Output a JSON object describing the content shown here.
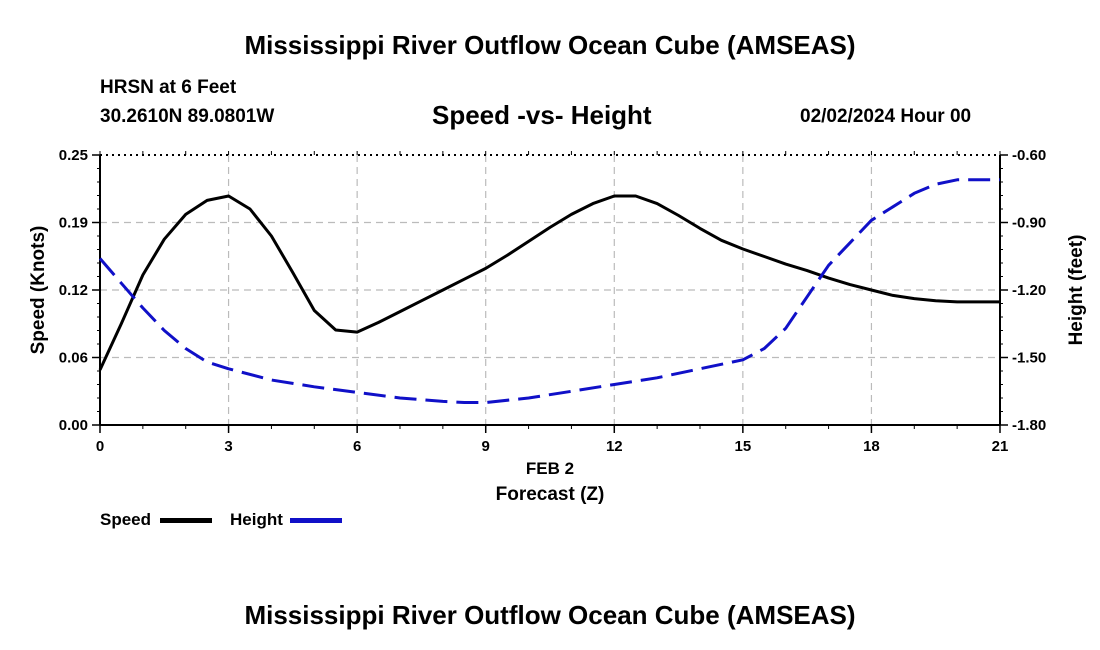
{
  "header": {
    "title": "Mississippi River Outflow Ocean Cube (AMSEAS)",
    "station": "HRSN at 6 Feet",
    "coords": "30.2610N  89.0801W",
    "subtitle": "Speed -vs- Height",
    "datetime": "02/02/2024 Hour 00"
  },
  "footer": {
    "title": "Mississippi River Outflow Ocean Cube (AMSEAS)"
  },
  "chart_data": {
    "type": "line",
    "xlabel_date": "FEB 2",
    "xlabel": "Forecast (Z)",
    "ylabel_left": "Speed (Knots)",
    "ylabel_right": "Height (feet)",
    "xlim": [
      0,
      21
    ],
    "ylim_left": [
      0,
      0.25
    ],
    "ylim_right": [
      -1.8,
      -0.6
    ],
    "x_ticks": [
      0,
      3,
      6,
      9,
      12,
      15,
      18,
      21
    ],
    "y_left_ticks": [
      "0.00",
      "0.06",
      "0.12",
      "0.19",
      "0.25"
    ],
    "y_left_tick_values": [
      0,
      0.0625,
      0.125,
      0.1875,
      0.25
    ],
    "y_right_ticks": [
      "-1.80",
      "-1.50",
      "-1.20",
      "-0.90",
      "-0.60"
    ],
    "y_right_tick_values": [
      -1.8,
      -1.5,
      -1.2,
      -0.9,
      -0.6
    ],
    "grid": true,
    "colors": {
      "speed": "#000000",
      "height": "#1010c8",
      "grid": "#bbbbbb"
    },
    "series": [
      {
        "name": "Speed",
        "axis": "left",
        "style": "solid",
        "x": [
          0,
          0.5,
          1,
          1.5,
          2,
          2.5,
          3,
          3.5,
          4,
          4.5,
          5,
          5.5,
          6,
          6.5,
          7,
          7.5,
          8,
          8.5,
          9,
          9.5,
          10,
          10.5,
          11,
          11.5,
          12,
          12.5,
          13,
          13.5,
          14,
          14.5,
          15,
          15.5,
          16,
          16.5,
          17,
          17.5,
          18,
          18.5,
          19,
          19.5,
          20,
          20.5,
          21
        ],
        "values": [
          0.051,
          0.094,
          0.139,
          0.172,
          0.195,
          0.208,
          0.212,
          0.2,
          0.175,
          0.141,
          0.106,
          0.088,
          0.086,
          0.095,
          0.105,
          0.115,
          0.125,
          0.135,
          0.145,
          0.157,
          0.17,
          0.183,
          0.195,
          0.205,
          0.212,
          0.212,
          0.205,
          0.194,
          0.182,
          0.171,
          0.163,
          0.156,
          0.149,
          0.143,
          0.136,
          0.13,
          0.125,
          0.12,
          0.117,
          0.115,
          0.114,
          0.114,
          0.114
        ]
      },
      {
        "name": "Height",
        "axis": "right",
        "style": "dashed",
        "x": [
          0,
          0.5,
          1,
          1.5,
          2,
          2.5,
          3,
          4,
          5,
          6,
          7,
          8,
          8.5,
          9,
          10,
          11,
          12,
          13,
          14,
          15,
          15.5,
          16,
          16.5,
          17,
          17.5,
          18,
          18.5,
          19,
          19.5,
          20,
          20.5,
          21
        ],
        "values": [
          -1.06,
          -1.17,
          -1.28,
          -1.38,
          -1.46,
          -1.52,
          -1.55,
          -1.6,
          -1.63,
          -1.655,
          -1.68,
          -1.695,
          -1.7,
          -1.7,
          -1.68,
          -1.65,
          -1.62,
          -1.59,
          -1.55,
          -1.51,
          -1.46,
          -1.37,
          -1.23,
          -1.09,
          -0.99,
          -0.89,
          -0.83,
          -0.77,
          -0.73,
          -0.71,
          -0.71,
          -0.71
        ]
      }
    ]
  }
}
